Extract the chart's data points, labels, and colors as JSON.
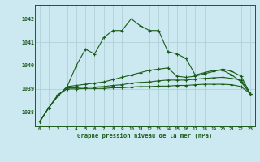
{
  "title": "Graphe pression niveau de la mer (hPa)",
  "background_color": "#cce8f0",
  "grid_color": "#b0d0d8",
  "line_color": "#1a5c1a",
  "xlim": [
    -0.5,
    23.5
  ],
  "ylim": [
    1037.4,
    1042.6
  ],
  "yticks": [
    1038,
    1039,
    1040,
    1041,
    1042
  ],
  "xticks": [
    0,
    1,
    2,
    3,
    4,
    5,
    6,
    7,
    8,
    9,
    10,
    11,
    12,
    13,
    14,
    15,
    16,
    17,
    18,
    19,
    20,
    21,
    22,
    23
  ],
  "series1": [
    1037.6,
    1038.2,
    1038.7,
    1039.1,
    1040.0,
    1040.7,
    1040.5,
    1041.2,
    1041.5,
    1041.5,
    1042.0,
    1041.7,
    1041.5,
    1041.5,
    1040.6,
    1040.5,
    1040.3,
    1039.6,
    1039.7,
    1039.8,
    1039.8,
    1039.6,
    1039.3,
    1038.8
  ],
  "series2": [
    1037.6,
    1038.2,
    1038.7,
    1039.1,
    1039.15,
    1039.2,
    1039.25,
    1039.3,
    1039.4,
    1039.5,
    1039.6,
    1039.7,
    1039.8,
    1039.85,
    1039.9,
    1039.55,
    1039.5,
    1039.55,
    1039.65,
    1039.75,
    1039.85,
    1039.75,
    1039.55,
    1038.8
  ],
  "series3": [
    1037.6,
    1038.2,
    1038.75,
    1039.05,
    1039.05,
    1039.08,
    1039.08,
    1039.1,
    1039.15,
    1039.18,
    1039.25,
    1039.28,
    1039.3,
    1039.35,
    1039.38,
    1039.38,
    1039.38,
    1039.42,
    1039.45,
    1039.48,
    1039.5,
    1039.45,
    1039.38,
    1038.8
  ],
  "series4": [
    1037.6,
    1038.2,
    1038.75,
    1039.0,
    1039.0,
    1039.02,
    1039.02,
    1039.02,
    1039.05,
    1039.05,
    1039.08,
    1039.1,
    1039.1,
    1039.12,
    1039.12,
    1039.15,
    1039.15,
    1039.18,
    1039.2,
    1039.2,
    1039.2,
    1039.18,
    1039.1,
    1038.8
  ]
}
